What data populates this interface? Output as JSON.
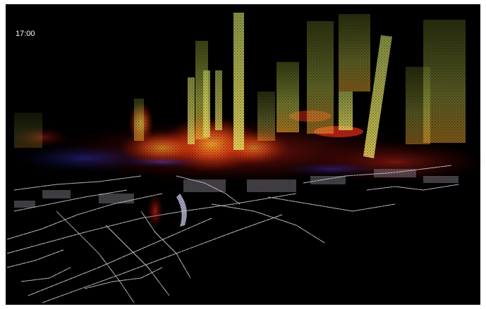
{
  "timestamp": "17:00"
}
